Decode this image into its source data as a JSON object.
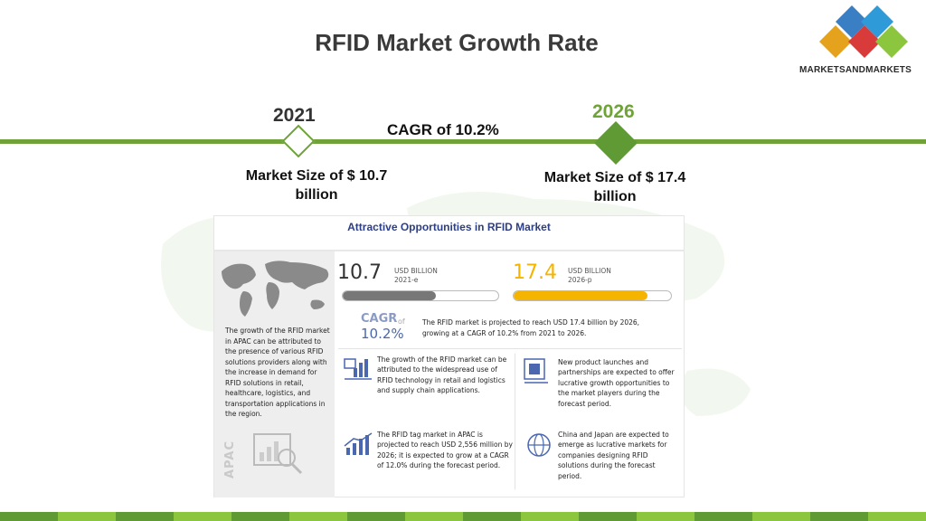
{
  "header": {
    "title": "RFID Market Growth Rate"
  },
  "logo": {
    "text": "MARKETSANDMARKETS",
    "icon": "four-diamonds-logo-icon"
  },
  "timeline": {
    "start_year": "2021",
    "end_year": "2026",
    "cagr": "CAGR of 10.2%",
    "start_size": "Market Size of $ 10.7 billion",
    "end_size": "Market Size of $ 17.4 billion",
    "accent_color": "#6fa33a"
  },
  "infographic": {
    "title": "Attractive Opportunities in RFID Market",
    "apac_text": "The growth of the RFID market in APAC can be attributed to the presence of various RFID solutions providers along with the increase in demand for RFID solutions in retail, healthcare, logistics, and transportation applications in the region.",
    "apac_label": "APAC",
    "value_2021": "10.7",
    "unit_2021_line1": "USD BILLION",
    "unit_2021_line2": "2021-e",
    "value_2026": "17.4",
    "unit_2026_line1": "USD BILLION",
    "unit_2026_line2": "2026-p",
    "bar_2021_fill": 0.6,
    "bar_2026_fill": 0.85,
    "cagr_label": "CAGR",
    "cagr_of": "of",
    "cagr_value": "10.2%",
    "cagr_text": "The RFID market is projected to reach USD 17.4 billion by 2026, growing at a CAGR of 10.2% from 2021 to 2026.",
    "boxes": [
      {
        "icon": "retail-chart-icon",
        "text": "The growth of the RFID market can be attributed to the widespread use of RFID technology in retail and logistics and supply chain applications."
      },
      {
        "icon": "product-launch-icon",
        "text": "New product launches and partnerships are expected to offer lucrative growth opportunities to the market players during the forecast period."
      },
      {
        "icon": "bar-growth-icon",
        "text": "The RFID tag market in APAC is projected to reach USD 2,556 million by 2026; it is expected to grow at a CAGR of 12.0% during the forecast period."
      },
      {
        "icon": "globe-icon",
        "text": "China and Japan are expected to emerge as lucrative markets for companies designing RFID solutions during the forecast period."
      }
    ]
  },
  "footer": {
    "colors": [
      "#5f9a35",
      "#8cc63f"
    ]
  }
}
